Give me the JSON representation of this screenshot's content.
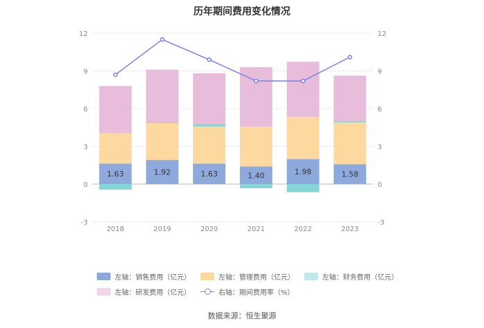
{
  "chart_data": {
    "type": "bar",
    "title": "历年期间费用变化情况",
    "categories": [
      "2018",
      "2019",
      "2020",
      "2021",
      "2022",
      "2023"
    ],
    "series": [
      {
        "name": "左轴：销售费用（亿元）",
        "axis": "left",
        "color": "#8eaadc",
        "values": [
          1.63,
          1.92,
          1.63,
          1.4,
          1.98,
          1.58
        ]
      },
      {
        "name": "左轴：管理费用（亿元）",
        "axis": "left",
        "color": "#fdd9a0",
        "values": [
          2.42,
          2.93,
          2.95,
          3.16,
          3.35,
          3.32
        ]
      },
      {
        "name": "左轴：财务费用（亿元）",
        "axis": "left",
        "color": "#86d6d8",
        "values": [
          -0.45,
          0.05,
          0.18,
          -0.33,
          -0.65,
          0.08
        ]
      },
      {
        "name": "左轴：研发费用（亿元）",
        "axis": "left",
        "color": "#e8bcdb",
        "values": [
          3.75,
          4.2,
          4.05,
          4.74,
          4.4,
          3.65
        ]
      },
      {
        "name": "右轴：期间费用率（%）",
        "axis": "right",
        "type": "line",
        "color": "#7a7ee8",
        "values": [
          8.7,
          11.5,
          9.9,
          8.2,
          8.2,
          10.1
        ]
      }
    ],
    "data_labels": [
      "1.63",
      "1.92",
      "1.63",
      "1.40",
      "1.98",
      "1.58"
    ],
    "left_axis": {
      "ylim": [
        -3,
        12
      ],
      "ticks": [
        "-3",
        "0",
        "3",
        "6",
        "9",
        "12"
      ]
    },
    "right_axis": {
      "ylim": [
        -3,
        12
      ],
      "ticks": [
        "-3",
        "0",
        "3",
        "6",
        "9",
        "12"
      ]
    },
    "grid": true,
    "legend_position": "bottom"
  },
  "source": "数据来源：恒生聚源"
}
